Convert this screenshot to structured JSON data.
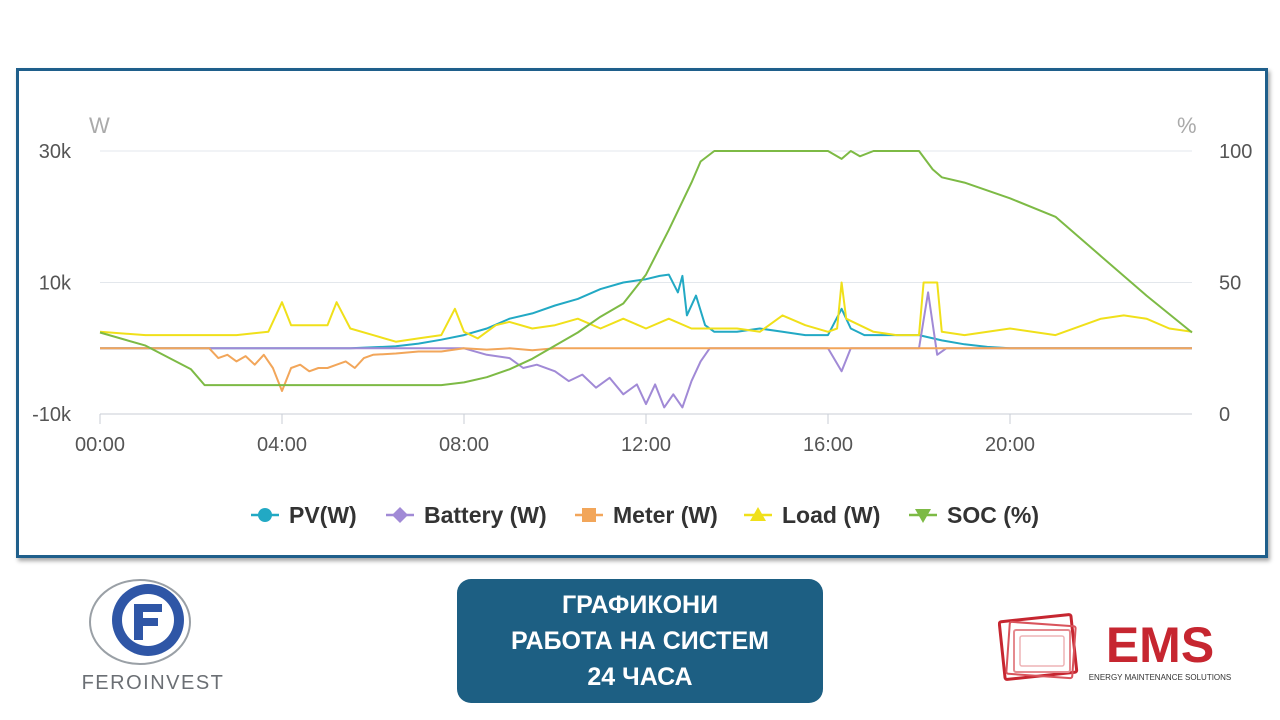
{
  "colors": {
    "pv": "#22a9c4",
    "battery": "#a18ad6",
    "meter": "#f2a65a",
    "load": "#f0e01a",
    "soc": "#7dba45",
    "frame": "#1f5f8b",
    "title_box": "#1d5f83",
    "ems_red": "#c62630"
  },
  "chart_data": {
    "type": "line",
    "xlabel": "",
    "ylabel_left": "W",
    "ylabel_right": "%",
    "x_ticks": [
      "00:00",
      "04:00",
      "08:00",
      "12:00",
      "16:00",
      "20:00"
    ],
    "y_left_ticks": [
      "30k",
      "10k",
      "-10k"
    ],
    "y_right_ticks": [
      "100",
      "50",
      "0"
    ],
    "ylim_left": [
      -10000,
      30000
    ],
    "ylim_right": [
      0,
      100
    ],
    "xlim_hours": [
      0,
      24
    ],
    "grid": true,
    "legend_placement": "bottom",
    "series": [
      {
        "name": "PV(W)",
        "key": "pv",
        "axis": "left",
        "marker": "circle",
        "x": [
          0,
          2,
          4,
          5.5,
          6.5,
          7,
          7.5,
          8,
          8.5,
          9,
          9.5,
          10,
          10.5,
          11,
          11.5,
          12,
          12.3,
          12.5,
          12.7,
          12.8,
          12.9,
          13.1,
          13.3,
          13.5,
          14,
          14.5,
          15,
          15.5,
          16,
          16.3,
          16.5,
          16.8,
          17,
          17.5,
          18,
          18.5,
          19,
          19.5,
          20,
          21,
          22,
          23,
          24
        ],
        "y": [
          0,
          0,
          0,
          0,
          300,
          700,
          1300,
          2000,
          3000,
          4500,
          5300,
          6500,
          7500,
          9000,
          10000,
          10500,
          11000,
          11200,
          8500,
          11000,
          5000,
          8000,
          3500,
          2500,
          2500,
          3000,
          2500,
          2000,
          2000,
          6000,
          3000,
          2000,
          2000,
          2000,
          2000,
          1200,
          600,
          200,
          0,
          0,
          0,
          0,
          0
        ]
      },
      {
        "name": "Battery (W)",
        "key": "battery",
        "axis": "left",
        "marker": "diamond",
        "x": [
          0,
          2.3,
          4,
          6,
          7.5,
          8,
          8.5,
          9,
          9.3,
          9.6,
          10,
          10.3,
          10.6,
          10.9,
          11.2,
          11.5,
          11.8,
          12,
          12.2,
          12.4,
          12.6,
          12.8,
          13,
          13.2,
          13.4,
          14,
          16,
          16.3,
          16.5,
          16.8,
          18,
          18.2,
          18.4,
          18.6,
          20,
          22,
          24
        ],
        "y": [
          0,
          0,
          0,
          0,
          0,
          0,
          -1000,
          -1500,
          -3000,
          -2500,
          -3500,
          -5000,
          -4000,
          -6000,
          -4500,
          -7000,
          -5500,
          -8500,
          -5500,
          -9000,
          -7000,
          -9000,
          -5000,
          -2000,
          0,
          0,
          0,
          -3500,
          0,
          0,
          0,
          8500,
          -1000,
          0,
          0,
          0,
          0
        ]
      },
      {
        "name": "Meter (W)",
        "key": "meter",
        "axis": "left",
        "marker": "square",
        "x": [
          0,
          2.4,
          2.6,
          2.8,
          3,
          3.2,
          3.4,
          3.6,
          3.8,
          4,
          4.2,
          4.4,
          4.6,
          4.8,
          5,
          5.2,
          5.4,
          5.6,
          5.8,
          6,
          6.5,
          7,
          7.5,
          8,
          8.5,
          9,
          9.5,
          10,
          11,
          12,
          13,
          14,
          16,
          16.3,
          16.5,
          18,
          24
        ],
        "y": [
          0,
          0,
          -1500,
          -1000,
          -2000,
          -1200,
          -2500,
          -1000,
          -3000,
          -6500,
          -3000,
          -2500,
          -3500,
          -3000,
          -3000,
          -2500,
          -2000,
          -3000,
          -1500,
          -1000,
          -800,
          -500,
          -500,
          0,
          -200,
          0,
          -300,
          0,
          0,
          0,
          0,
          0,
          0,
          0,
          0,
          0,
          0
        ]
      },
      {
        "name": "Load (W)",
        "key": "load",
        "axis": "left",
        "marker": "triangle",
        "x": [
          0,
          1,
          2,
          3,
          3.7,
          4,
          4.2,
          4.5,
          5,
          5.2,
          5.5,
          6,
          6.5,
          7,
          7.5,
          7.8,
          8,
          8.3,
          8.7,
          9,
          9.5,
          10,
          10.5,
          11,
          11.5,
          12,
          12.5,
          13,
          13.5,
          14,
          14.5,
          15,
          15.5,
          16,
          16.2,
          16.3,
          16.4,
          17,
          17.5,
          18,
          18.1,
          18.4,
          18.5,
          19,
          20,
          21,
          22,
          22.5,
          23,
          23.5,
          24
        ],
        "y": [
          2500,
          2000,
          2000,
          2000,
          2500,
          7000,
          3500,
          3500,
          3500,
          7000,
          3000,
          2000,
          1000,
          1500,
          2000,
          6000,
          2500,
          1500,
          3500,
          4000,
          3000,
          3500,
          4500,
          3000,
          4500,
          3000,
          4500,
          3000,
          3000,
          3000,
          2500,
          5000,
          3500,
          2500,
          3000,
          10000,
          4500,
          2500,
          2000,
          2000,
          10000,
          10000,
          2500,
          2000,
          3000,
          2000,
          4500,
          5000,
          4500,
          3000,
          2500
        ]
      },
      {
        "name": "SOC (%)",
        "key": "soc",
        "axis": "right",
        "marker": "triangle-down",
        "x": [
          0,
          1,
          2,
          2.3,
          3,
          5,
          7,
          7.5,
          8,
          8.5,
          9,
          9.5,
          10,
          10.5,
          11,
          11.5,
          12,
          12.5,
          13,
          13.2,
          13.5,
          14,
          15,
          16,
          16.3,
          16.5,
          16.7,
          17,
          18,
          18.3,
          18.5,
          19,
          20,
          21,
          22,
          23,
          24
        ],
        "y": [
          31,
          26,
          17,
          11,
          11,
          11,
          11,
          11,
          12,
          14,
          17,
          21,
          26,
          31,
          37,
          42,
          53,
          70,
          88,
          96,
          100,
          100,
          100,
          100,
          97,
          100,
          98,
          100,
          100,
          93,
          90,
          88,
          82,
          75,
          60,
          45,
          31
        ]
      }
    ]
  },
  "title_box": {
    "line1": "ГРАФИКОНИ",
    "line2": "РАБОТА НА СИСТЕМ",
    "line3": "24 ЧАСА"
  },
  "logos": {
    "left_wordmark": "FEROINVEST",
    "left_icon": "feroinvest-f-globe-logo",
    "right_wordmark": "EMS",
    "right_tagline": "ENERGY MAINTENANCE SOLUTIONS",
    "right_icon": "ems-stacked-frames-logo"
  }
}
